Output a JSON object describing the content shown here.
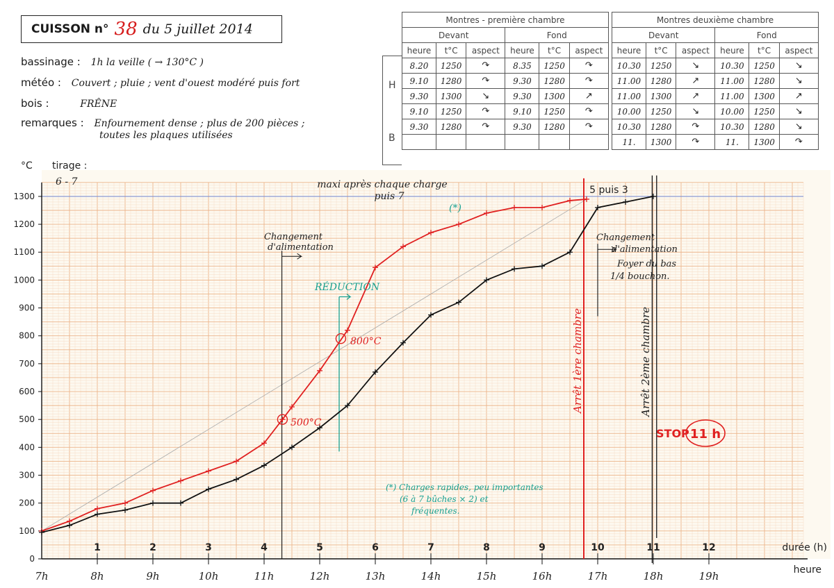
{
  "header": {
    "label": "CUISSON n°",
    "number": "38",
    "date": "du 5 juillet 2014"
  },
  "info": {
    "bassinage_label": "bassinage :",
    "bassinage_value": "1h la veille ( → 130°C )",
    "meteo_label": "météo :",
    "meteo_value": "Couvert ; pluie ; vent d'ouest modéré puis fort",
    "bois_label": "bois :",
    "bois_value": "FRÊNE",
    "remarques_label": "remarques :",
    "remarques_value_1": "Enfournement dense ; plus de 200 pièces ;",
    "remarques_value_2": "toutes les plaques utilisées"
  },
  "table_row_groups": [
    "H",
    "B"
  ],
  "table1": {
    "title": "Montres - première chambre",
    "sub": [
      "Devant",
      "Fond"
    ],
    "cols": [
      "heure",
      "t°C",
      "aspect",
      "heure",
      "t°C",
      "aspect"
    ],
    "rows": [
      [
        "8.20",
        "1250",
        "↷",
        "8.35",
        "1250",
        "↷"
      ],
      [
        "9.10",
        "1280",
        "↷",
        "9.30",
        "1280",
        "↷"
      ],
      [
        "9.30",
        "1300",
        "↘",
        "9.30",
        "1300",
        "↗"
      ],
      [
        "9.10",
        "1250",
        "↷",
        "9.10",
        "1250",
        "↷"
      ],
      [
        "9.30",
        "1280",
        "↷",
        "9.30",
        "1280",
        "↷"
      ],
      [
        "",
        "",
        "",
        "",
        "",
        ""
      ]
    ]
  },
  "table2": {
    "title": "Montres deuxième chambre",
    "sub": [
      "Devant",
      "Fond"
    ],
    "cols": [
      "heure",
      "t°C",
      "aspect",
      "heure",
      "t°C",
      "aspect"
    ],
    "rows": [
      [
        "10.30",
        "1250",
        "↘",
        "10.30",
        "1250",
        "↘"
      ],
      [
        "11.00",
        "1280",
        "↗",
        "11.00",
        "1280",
        "↘"
      ],
      [
        "11.00",
        "1300",
        "↗",
        "11.00",
        "1300",
        "↗"
      ],
      [
        "10.00",
        "1250",
        "↘",
        "10.00",
        "1250",
        "↘"
      ],
      [
        "10.30",
        "1280",
        "↷",
        "10.30",
        "1280",
        "↘"
      ],
      [
        "11.",
        "1300",
        "↷",
        "11.",
        "1300",
        "↷"
      ]
    ]
  },
  "colors": {
    "grid_minor": "#f6dcc6",
    "grid_major": "#ecb48a",
    "chamber1": "#e02020",
    "chamber2": "#111111",
    "note_teal": "#18a090",
    "max_line": "#8090d0",
    "paper": "#fdf9f0"
  },
  "chart_data": {
    "type": "line",
    "ylabel": "°C",
    "xlabel": "durée (h)",
    "x2label": "heure",
    "ylim": [
      0,
      1350
    ],
    "xlim": [
      0,
      13.7
    ],
    "yticks": [
      0,
      100,
      200,
      300,
      400,
      500,
      600,
      700,
      800,
      900,
      1000,
      1100,
      1200,
      1300
    ],
    "duration_ticks": [
      "1",
      "2",
      "3",
      "4",
      "5",
      "6",
      "7",
      "8",
      "9",
      "10",
      "11",
      "12"
    ],
    "hour_ticks": [
      "7h",
      "8h",
      "9h",
      "10h",
      "11h",
      "12h",
      "13h",
      "14h",
      "15h",
      "16h",
      "17h",
      "18h",
      "19h"
    ],
    "grid": true,
    "series": [
      {
        "x": [
          0,
          0.5,
          1,
          1.5,
          2,
          2.5,
          3,
          3.5,
          4,
          4.33,
          4.5,
          5,
          5.5,
          6,
          6.5,
          7,
          7.5,
          8,
          8.5,
          9,
          9.5,
          9.8
        ],
        "y": [
          100,
          135,
          180,
          200,
          245,
          280,
          315,
          350,
          415,
          500,
          545,
          675,
          820,
          1045,
          1120,
          1170,
          1200,
          1240,
          1260,
          1260,
          1285,
          1290
        ]
      },
      {
        "x": [
          0,
          0.5,
          1,
          1.5,
          2,
          2.5,
          3,
          3.5,
          4,
          4.5,
          5,
          5.5,
          6,
          6.5,
          7,
          7.5,
          8,
          8.5,
          9,
          9.5,
          10,
          10.5,
          11
        ],
        "y": [
          95,
          120,
          160,
          175,
          200,
          200,
          250,
          285,
          335,
          400,
          470,
          550,
          670,
          775,
          875,
          920,
          1000,
          1040,
          1050,
          1100,
          1260,
          1280,
          1300
        ]
      }
    ],
    "reference_line": {
      "y": 1300
    },
    "annotations": {
      "tirage_label": "tirage :",
      "tirage_value": "6 - 7",
      "maxi_1": "maxi après chaque charge",
      "maxi_2": "puis 7",
      "cinq_puis_trois": "5 puis 3",
      "star": "(*)",
      "change1_1": "Changement",
      "change1_2": "d'alimentation",
      "reduction": "RÉDUCTION",
      "p500": "500°C",
      "p800": "800°C",
      "arret1": "Arrêt 1ère chambre",
      "change2_1": "Changement",
      "change2_2": "d'alimentation",
      "foyer_1": "Foyer du bas",
      "foyer_2": "1/4 bouchon.",
      "arret2": "Arrêt 2ème chambre",
      "stop": "STOP",
      "stop_hours": "11 h",
      "note_1": "(*) Charges rapides, peu importantes",
      "note_2": "(6 à 7 bûches × 2) et",
      "note_3": "fréquentes."
    }
  }
}
